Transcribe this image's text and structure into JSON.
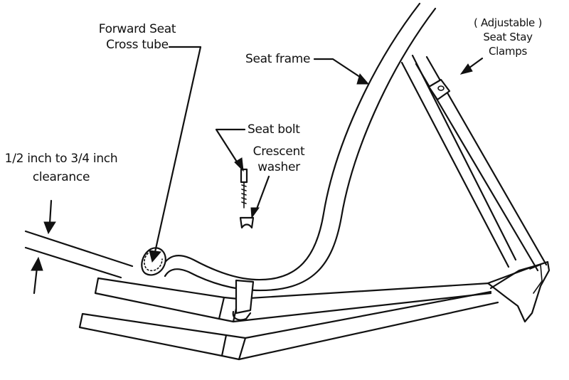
{
  "labels": {
    "forward_seat_line1": "Forward Seat",
    "forward_seat_line2": "Cross tube",
    "adjustable_line1": "( Adjustable )",
    "adjustable_line2": "Seat Stay",
    "adjustable_line3": "Clamps",
    "seat_frame": "Seat frame",
    "seat_bolt": "Seat bolt",
    "crescent_line1": "Crescent",
    "crescent_line2": "washer",
    "clearance_line1": "1/2 inch to 3/4 inch",
    "clearance_line2": "clearance"
  }
}
